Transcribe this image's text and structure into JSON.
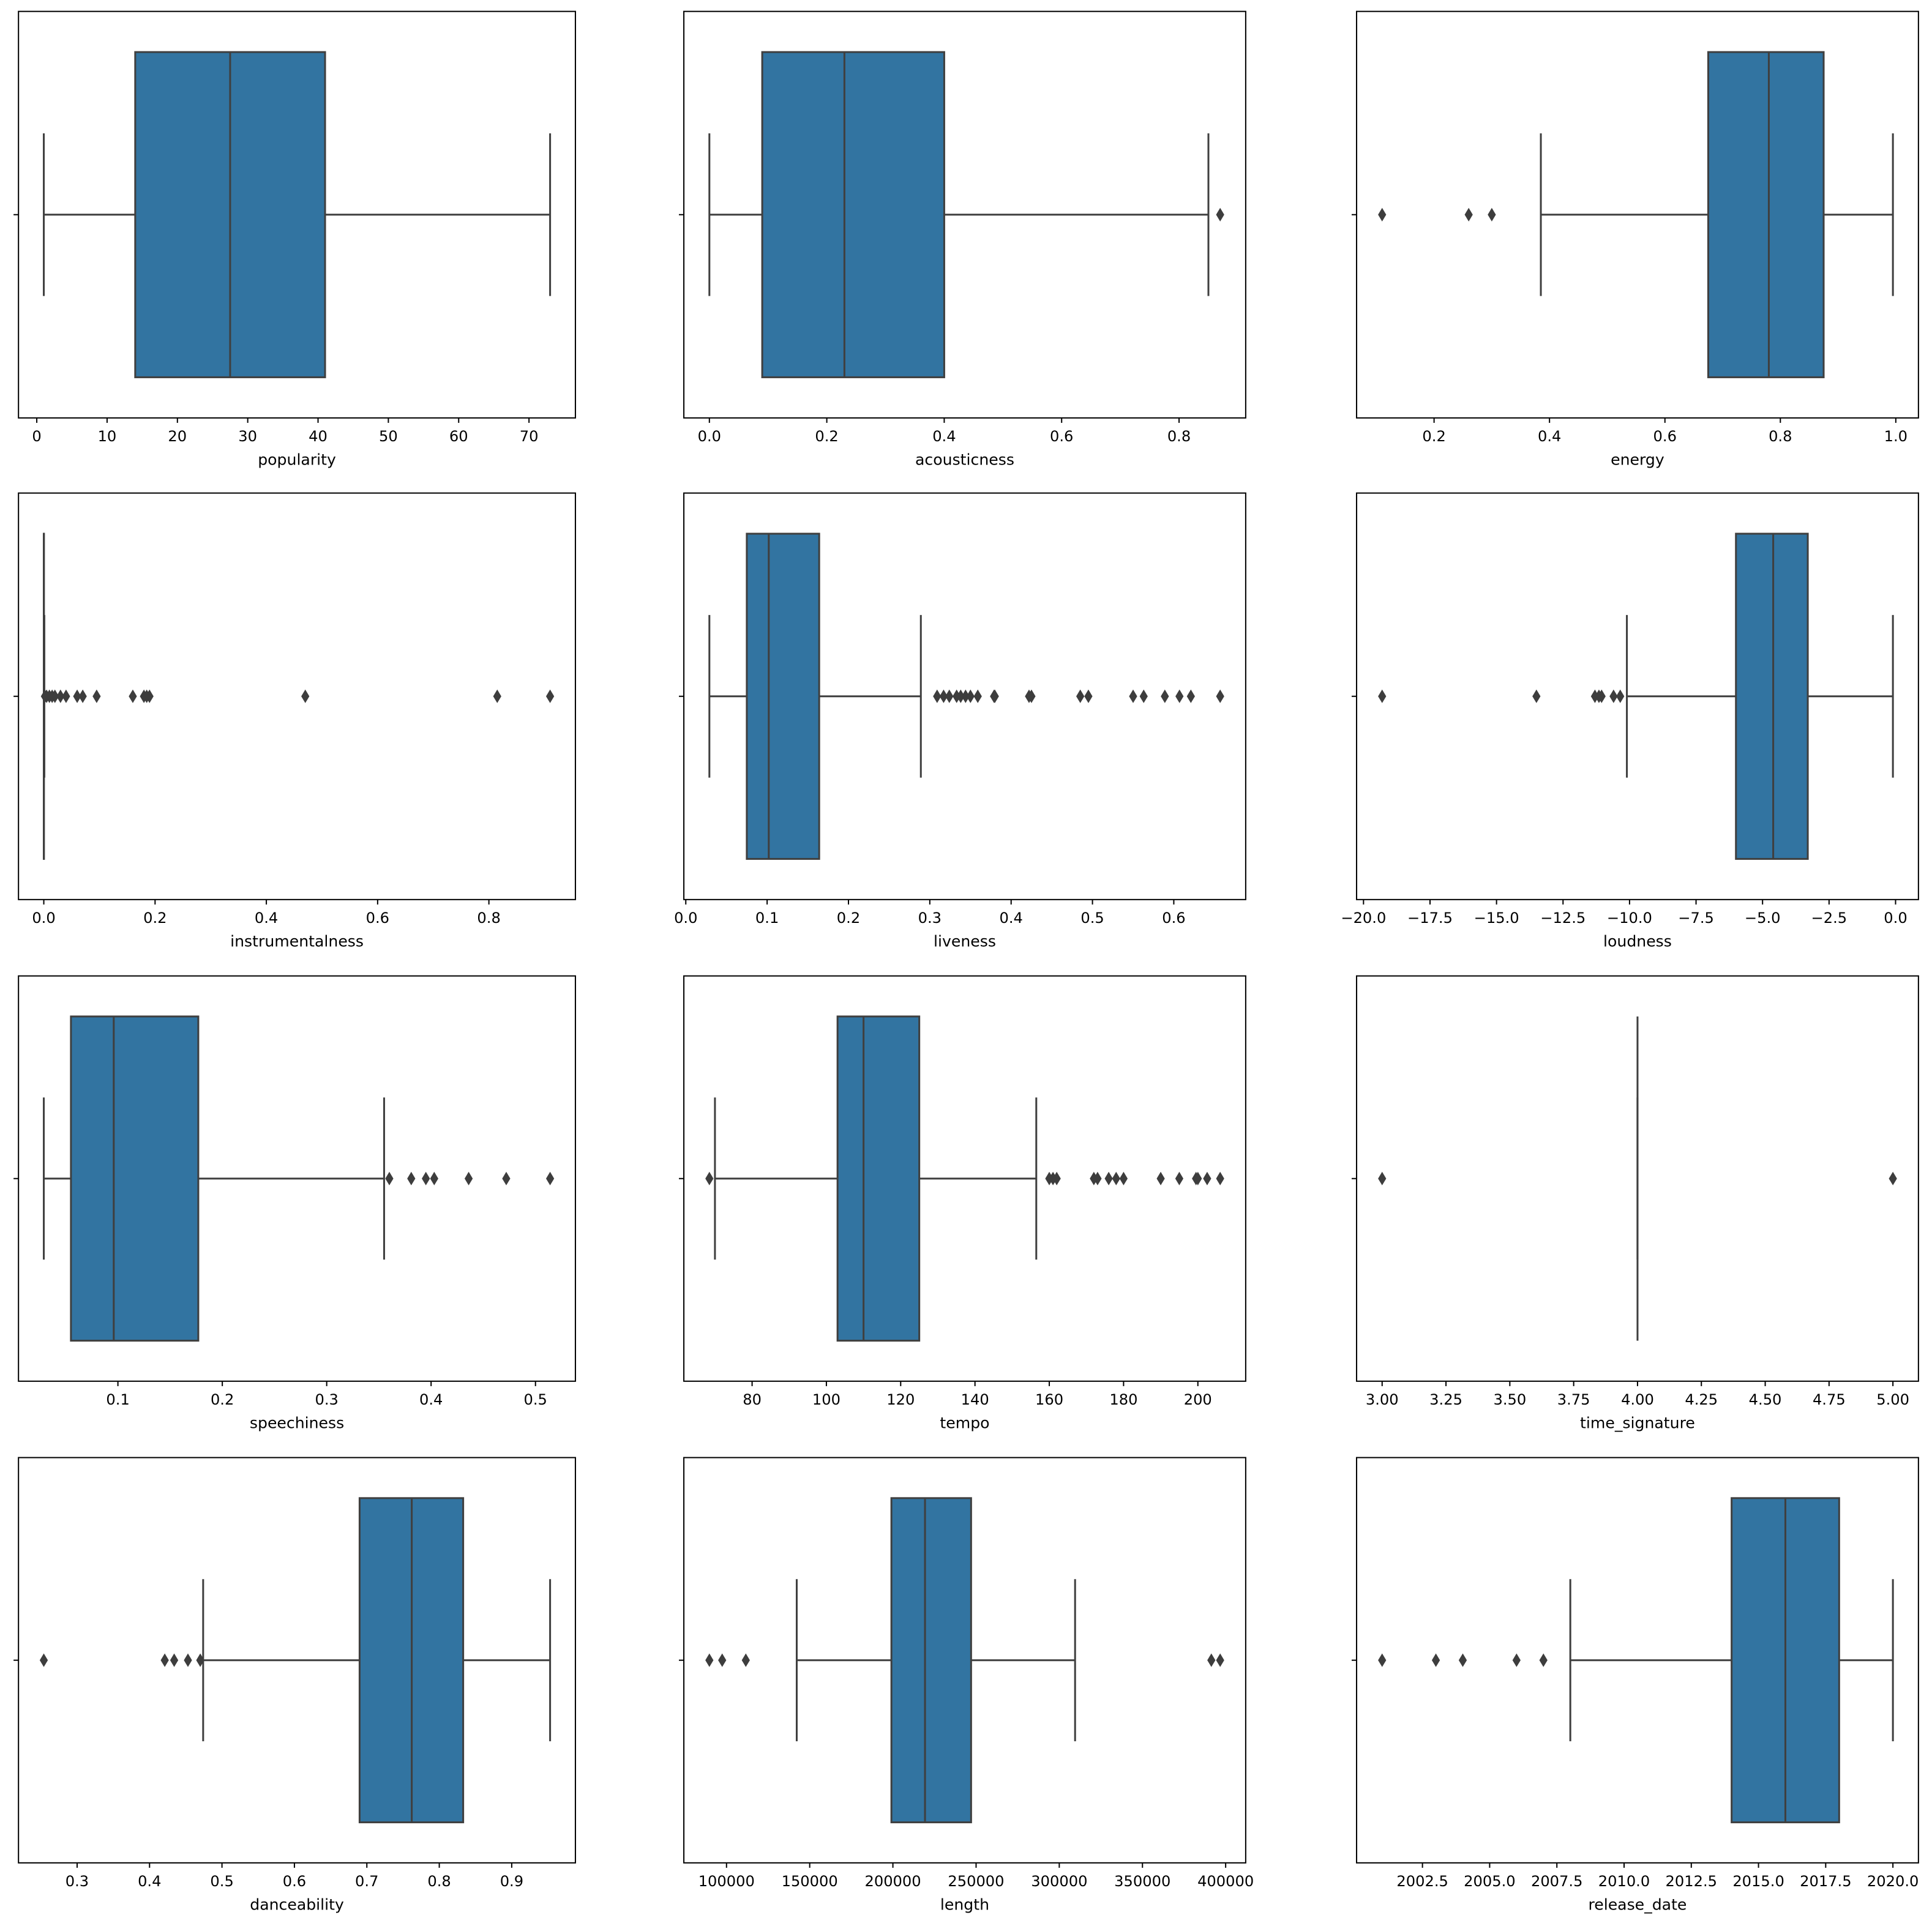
{
  "chart_data": [
    {
      "type": "box",
      "xlabel": "popularity",
      "tick_labels": [
        "0",
        "10",
        "20",
        "30",
        "40",
        "50",
        "60",
        "70"
      ],
      "whisker_low": 1,
      "q1": 14,
      "median": 27.5,
      "q3": 41,
      "whisker_high": 73,
      "outliers": []
    },
    {
      "type": "box",
      "xlabel": "acousticness",
      "tick_labels": [
        "0.0",
        "0.2",
        "0.4",
        "0.6",
        "0.8"
      ],
      "whisker_low": 0.0,
      "q1": 0.09,
      "median": 0.23,
      "q3": 0.4,
      "whisker_high": 0.85,
      "outliers": [
        0.87
      ]
    },
    {
      "type": "box",
      "xlabel": "energy",
      "tick_labels": [
        "0.2",
        "0.4",
        "0.6",
        "0.8",
        "1.0"
      ],
      "whisker_low": 0.385,
      "q1": 0.675,
      "median": 0.78,
      "q3": 0.875,
      "whisker_high": 0.995,
      "outliers": [
        0.11,
        0.26,
        0.3
      ]
    },
    {
      "type": "box",
      "xlabel": "instrumentalness",
      "tick_labels": [
        "0.0",
        "0.2",
        "0.4",
        "0.6",
        "0.8"
      ],
      "whisker_low": 0.0,
      "q1": 0.0,
      "median": 0.0,
      "q3": 0.0003,
      "whisker_high": 0.001,
      "outliers": [
        0.002,
        0.005,
        0.01,
        0.015,
        0.02,
        0.03,
        0.04,
        0.06,
        0.07,
        0.095,
        0.16,
        0.18,
        0.185,
        0.19,
        0.47,
        0.815,
        0.91
      ]
    },
    {
      "type": "box",
      "xlabel": "liveness",
      "tick_labels": [
        "0.0",
        "0.1",
        "0.2",
        "0.3",
        "0.4",
        "0.5",
        "0.6"
      ],
      "whisker_low": 0.029,
      "q1": 0.075,
      "median": 0.102,
      "q3": 0.164,
      "whisker_high": 0.289,
      "outliers": [
        0.309,
        0.317,
        0.324,
        0.333,
        0.338,
        0.344,
        0.35,
        0.359,
        0.379,
        0.38,
        0.422,
        0.425,
        0.485,
        0.495,
        0.55,
        0.563,
        0.589,
        0.607,
        0.621,
        0.657
      ]
    },
    {
      "type": "box",
      "xlabel": "loudness",
      "tick_labels": [
        "−20.0",
        "−17.5",
        "−15.0",
        "−12.5",
        "−10.0",
        "−7.5",
        "−5.0",
        "−2.5",
        "0.0"
      ],
      "whisker_low": -10.1,
      "q1": -6.0,
      "median": -4.6,
      "q3": -3.3,
      "whisker_high": -0.1,
      "outliers": [
        -19.3,
        -13.5,
        -11.3,
        -11.15,
        -11.05,
        -10.6,
        -10.35
      ]
    },
    {
      "type": "box",
      "xlabel": "speechiness",
      "tick_labels": [
        "0.1",
        "0.2",
        "0.3",
        "0.4",
        "0.5"
      ],
      "whisker_low": 0.029,
      "q1": 0.055,
      "median": 0.096,
      "q3": 0.177,
      "whisker_high": 0.355,
      "outliers": [
        0.36,
        0.381,
        0.395,
        0.403,
        0.436,
        0.472,
        0.514
      ]
    },
    {
      "type": "box",
      "xlabel": "tempo",
      "tick_labels": [
        "80",
        "100",
        "120",
        "140",
        "160",
        "180",
        "200"
      ],
      "whisker_low": 70,
      "q1": 103,
      "median": 110,
      "q3": 125,
      "whisker_high": 156.5,
      "outliers": [
        68.5,
        160,
        161,
        162,
        172,
        173,
        176,
        178,
        180,
        190,
        195,
        199.5,
        200,
        202.5,
        206
      ]
    },
    {
      "type": "box",
      "xlabel": "time_signature",
      "tick_labels": [
        "3.00",
        "3.25",
        "3.50",
        "3.75",
        "4.00",
        "4.25",
        "4.50",
        "4.75",
        "5.00"
      ],
      "whisker_low": 4,
      "q1": 4,
      "median": 4,
      "q3": 4,
      "whisker_high": 4,
      "outliers": [
        3,
        5
      ]
    },
    {
      "type": "box",
      "xlabel": "danceability",
      "tick_labels": [
        "0.3",
        "0.4",
        "0.5",
        "0.6",
        "0.7",
        "0.8",
        "0.9"
      ],
      "whisker_low": 0.474,
      "q1": 0.69,
      "median": 0.762,
      "q3": 0.833,
      "whisker_high": 0.953,
      "outliers": [
        0.254,
        0.421,
        0.434,
        0.453,
        0.47
      ]
    },
    {
      "type": "box",
      "xlabel": "length",
      "tick_labels": [
        "100000",
        "150000",
        "200000",
        "250000",
        "300000",
        "350000",
        "400000"
      ],
      "whisker_low": 142200,
      "q1": 199100,
      "median": 219300,
      "q3": 247000,
      "whisker_high": 309500,
      "outliers": [
        89700,
        97400,
        111600,
        391400,
        396700
      ]
    },
    {
      "type": "box",
      "xlabel": "release_date",
      "tick_labels": [
        "2002.5",
        "2005.0",
        "2007.5",
        "2010.0",
        "2012.5",
        "2015.0",
        "2017.5",
        "2020.0"
      ],
      "whisker_low": 2008,
      "q1": 2014,
      "median": 2016,
      "q3": 2018,
      "whisker_high": 2020,
      "outliers": [
        2001,
        2003,
        2004,
        2006,
        2007
      ]
    }
  ],
  "colors": {
    "box_fill": "#3274a1",
    "line": "#3f3f3f",
    "outlier": "#3d3d3d",
    "axes": "#000000"
  }
}
